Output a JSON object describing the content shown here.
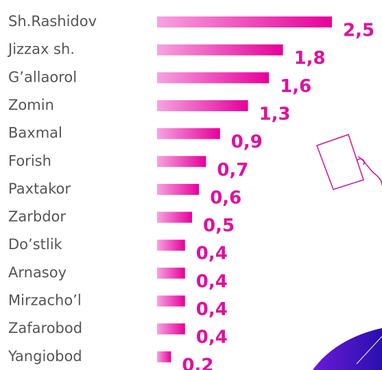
{
  "chart_data": {
    "type": "bar",
    "orientation": "horizontal",
    "categories": [
      "Sh.Rashidov",
      "Jizzax sh.",
      "G’allaorol",
      "Zomin",
      "Baxmal",
      "Forish",
      "Paxtakor",
      "Zarbdor",
      "Do’stlik",
      "Arnasoy",
      "Mirzacho’l",
      "Zafarobod",
      "Yangiobod"
    ],
    "values": [
      2.5,
      1.8,
      1.6,
      1.3,
      0.9,
      0.7,
      0.6,
      0.5,
      0.4,
      0.4,
      0.4,
      0.4,
      0.2
    ],
    "value_labels": [
      "2,5",
      "1,8",
      "1,6",
      "1,3",
      "0,9",
      "0,7",
      "0,6",
      "0,5",
      "0,4",
      "0,4",
      "0,4",
      "0,4",
      "0,2"
    ],
    "color": "#e6009a"
  }
}
